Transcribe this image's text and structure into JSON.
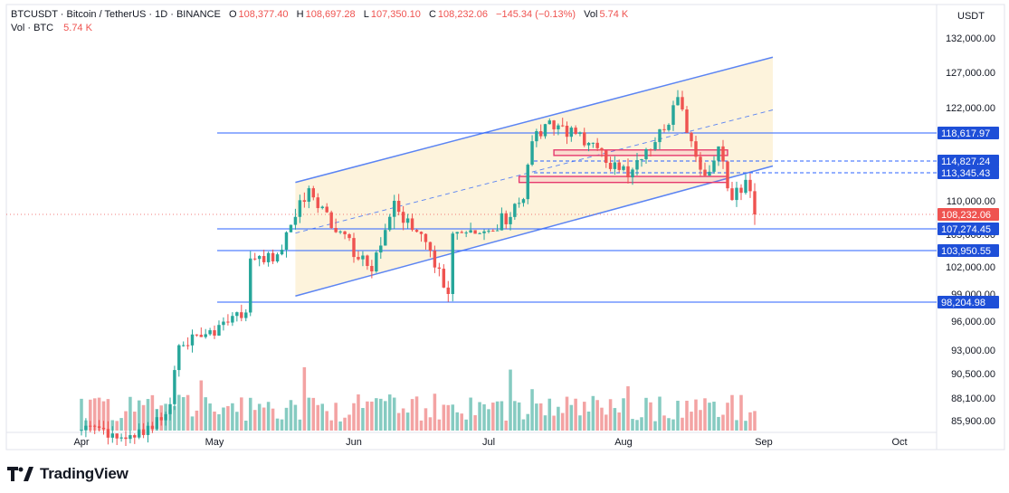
{
  "header": {
    "symbol_line": "BTCUSDT · Bitcoin / TetherUS · 1D · BINANCE",
    "o_label": "O",
    "o_value": "108,377.40",
    "h_label": "H",
    "h_value": "108,697.28",
    "l_label": "L",
    "l_value": "107,350.10",
    "c_label": "C",
    "c_value": "108,232.06",
    "change": "−145.34 (−0.13%)",
    "vol_label": "Vol",
    "vol_value": "5.74 K",
    "vol_line_label": "Vol · BTC",
    "vol_line_value": "5.74 K"
  },
  "brand": {
    "name": "TradingView",
    "logo_icon": "tradingview-logo-icon"
  },
  "chart_data": {
    "type": "candlestick",
    "symbol": "BTCUSDT",
    "interval": "1D",
    "currency_label": "USDT",
    "x_tick_labels": [
      "Apr",
      "May",
      "Jun",
      "Jul",
      "Aug",
      "Sep",
      "Oct"
    ],
    "x_tick_dates": [
      "2025-04-01",
      "2025-05-01",
      "2025-06-01",
      "2025-07-01",
      "2025-08-01",
      "2025-09-01",
      "2025-10-01"
    ],
    "y_tick_labels": [
      "132,000.00",
      "127,000.00",
      "122,000.00",
      "110,000.00",
      "105,000.00",
      "102,000.00",
      "99,000.00",
      "96,000.00",
      "93,000.00",
      "90,500.00",
      "88,100.00",
      "85,900.00"
    ],
    "y_tick_values": [
      132000,
      127000,
      122000,
      110000,
      105000,
      102000,
      99000,
      96000,
      93000,
      90500,
      88100,
      85900
    ],
    "ohlc_anchors": [
      {
        "date": "2025-04-01",
        "close": 85000
      },
      {
        "date": "2025-04-15",
        "close": 84500
      },
      {
        "date": "2025-04-21",
        "close": 87500
      },
      {
        "date": "2025-04-23",
        "close": 93500
      },
      {
        "date": "2025-05-01",
        "close": 94500
      },
      {
        "date": "2025-05-08",
        "close": 97000
      },
      {
        "date": "2025-05-09",
        "close": 103000
      },
      {
        "date": "2025-05-15",
        "close": 103500
      },
      {
        "date": "2025-05-22",
        "close": 111500
      },
      {
        "date": "2025-05-30",
        "close": 105000
      },
      {
        "date": "2025-06-05",
        "close": 101500
      },
      {
        "date": "2025-06-10",
        "close": 110000
      },
      {
        "date": "2025-06-17",
        "close": 104500
      },
      {
        "date": "2025-06-22",
        "close": 99000
      },
      {
        "date": "2025-06-23",
        "close": 105300
      },
      {
        "date": "2025-07-01",
        "close": 106500
      },
      {
        "date": "2025-07-09",
        "close": 110200
      },
      {
        "date": "2025-07-11",
        "close": 117500
      },
      {
        "date": "2025-07-14",
        "close": 119800
      },
      {
        "date": "2025-07-21",
        "close": 118500
      },
      {
        "date": "2025-08-02",
        "close": 112800
      },
      {
        "date": "2025-08-10",
        "close": 119000
      },
      {
        "date": "2025-08-13",
        "close": 123500
      },
      {
        "date": "2025-08-16",
        "close": 117500
      },
      {
        "date": "2025-08-19",
        "close": 113000
      },
      {
        "date": "2025-08-22",
        "close": 116800
      },
      {
        "date": "2025-08-25",
        "close": 110100
      },
      {
        "date": "2025-08-28",
        "close": 112500
      },
      {
        "date": "2025-08-30",
        "close": 108232.06
      }
    ],
    "last_close": 108232.06,
    "price_labels": [
      {
        "label": "118,617.97",
        "value": 118617.97,
        "style": "solid"
      },
      {
        "label": "114,827.24",
        "value": 114827.24,
        "style": "dashed"
      },
      {
        "label": "113,345.43",
        "value": 113345.43,
        "style": "dashed"
      },
      {
        "label": "108,232.06",
        "value": 108232.06,
        "style": "last-price"
      },
      {
        "label": "107,274.45",
        "value": 107274.45,
        "style": "solid"
      },
      {
        "label": "103,950.55",
        "value": 103950.55,
        "style": "solid"
      },
      {
        "label": "98,204.98",
        "value": 98204.98,
        "style": "solid"
      }
    ],
    "channel": {
      "start_date": "2025-05-19",
      "end_date": "2025-09-03",
      "upper_start": 112200,
      "upper_end": 129200,
      "lower_start": 98800,
      "lower_end": 114200
    },
    "zones": [
      {
        "start_date": "2025-07-16",
        "end_date": "2025-08-24",
        "top": 116200,
        "bottom": 115700
      },
      {
        "start_date": "2025-07-08",
        "end_date": "2025-08-24",
        "top": 112800,
        "bottom": 112300
      }
    ],
    "colors": {
      "up": "#26a69a",
      "down": "#ef5350",
      "volume_up": "#86cbc1",
      "volume_down": "#f3a3a3",
      "level_line": "#2962ff",
      "level_label_bg": "#1e4fd8",
      "last_price_bg": "#ef5350",
      "channel_fill": "#fdf3dc",
      "channel_line": "#5b84f3",
      "zone_border": "#e63a6e"
    },
    "grid": false,
    "legend": "none"
  }
}
